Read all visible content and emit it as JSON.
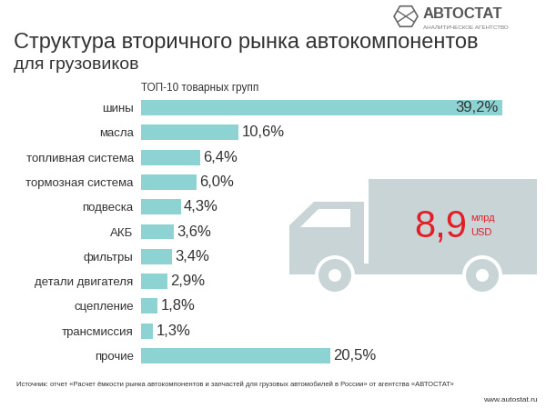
{
  "chart_data": {
    "type": "bar",
    "orientation": "horizontal",
    "title": "Структура вторичного рынка автокомпонентов",
    "subtitle": "для грузовиков",
    "categories": [
      "шины",
      "масла",
      "топливная система",
      "тормозная система",
      "подвеска",
      "АКБ",
      "фильтры",
      "детали двигателя",
      "сцепление",
      "трансмиссия",
      "прочие"
    ],
    "values": [
      39.2,
      10.6,
      6.4,
      6.0,
      4.3,
      3.6,
      3.4,
      2.9,
      1.8,
      1.3,
      20.5
    ],
    "value_labels": [
      "39,2%",
      "10,6%",
      "6,4%",
      "6,0%",
      "4,3%",
      "3,6%",
      "3,4%",
      "2,9%",
      "1,8%",
      "1,3%",
      "20,5%"
    ],
    "color": "#8ed3d4",
    "data_labels": true,
    "tick_labels": "y",
    "annotations": {
      "header": "ТОП-10 товарных групп",
      "total": "8,9",
      "total_unit": [
        "млрд",
        "USD"
      ],
      "logo": "АВТОСТАТ",
      "logo_sub": "АНАЛИТИЧЕСКОЕ АГЕНТСТВО",
      "source": "Источник: отчет «Расчет ёмкости рынка автокомпонентов и запчастей для грузовых автомобилей в России» от агентства «АВТОСТАТ»",
      "website": "www.autostat.ru"
    }
  }
}
